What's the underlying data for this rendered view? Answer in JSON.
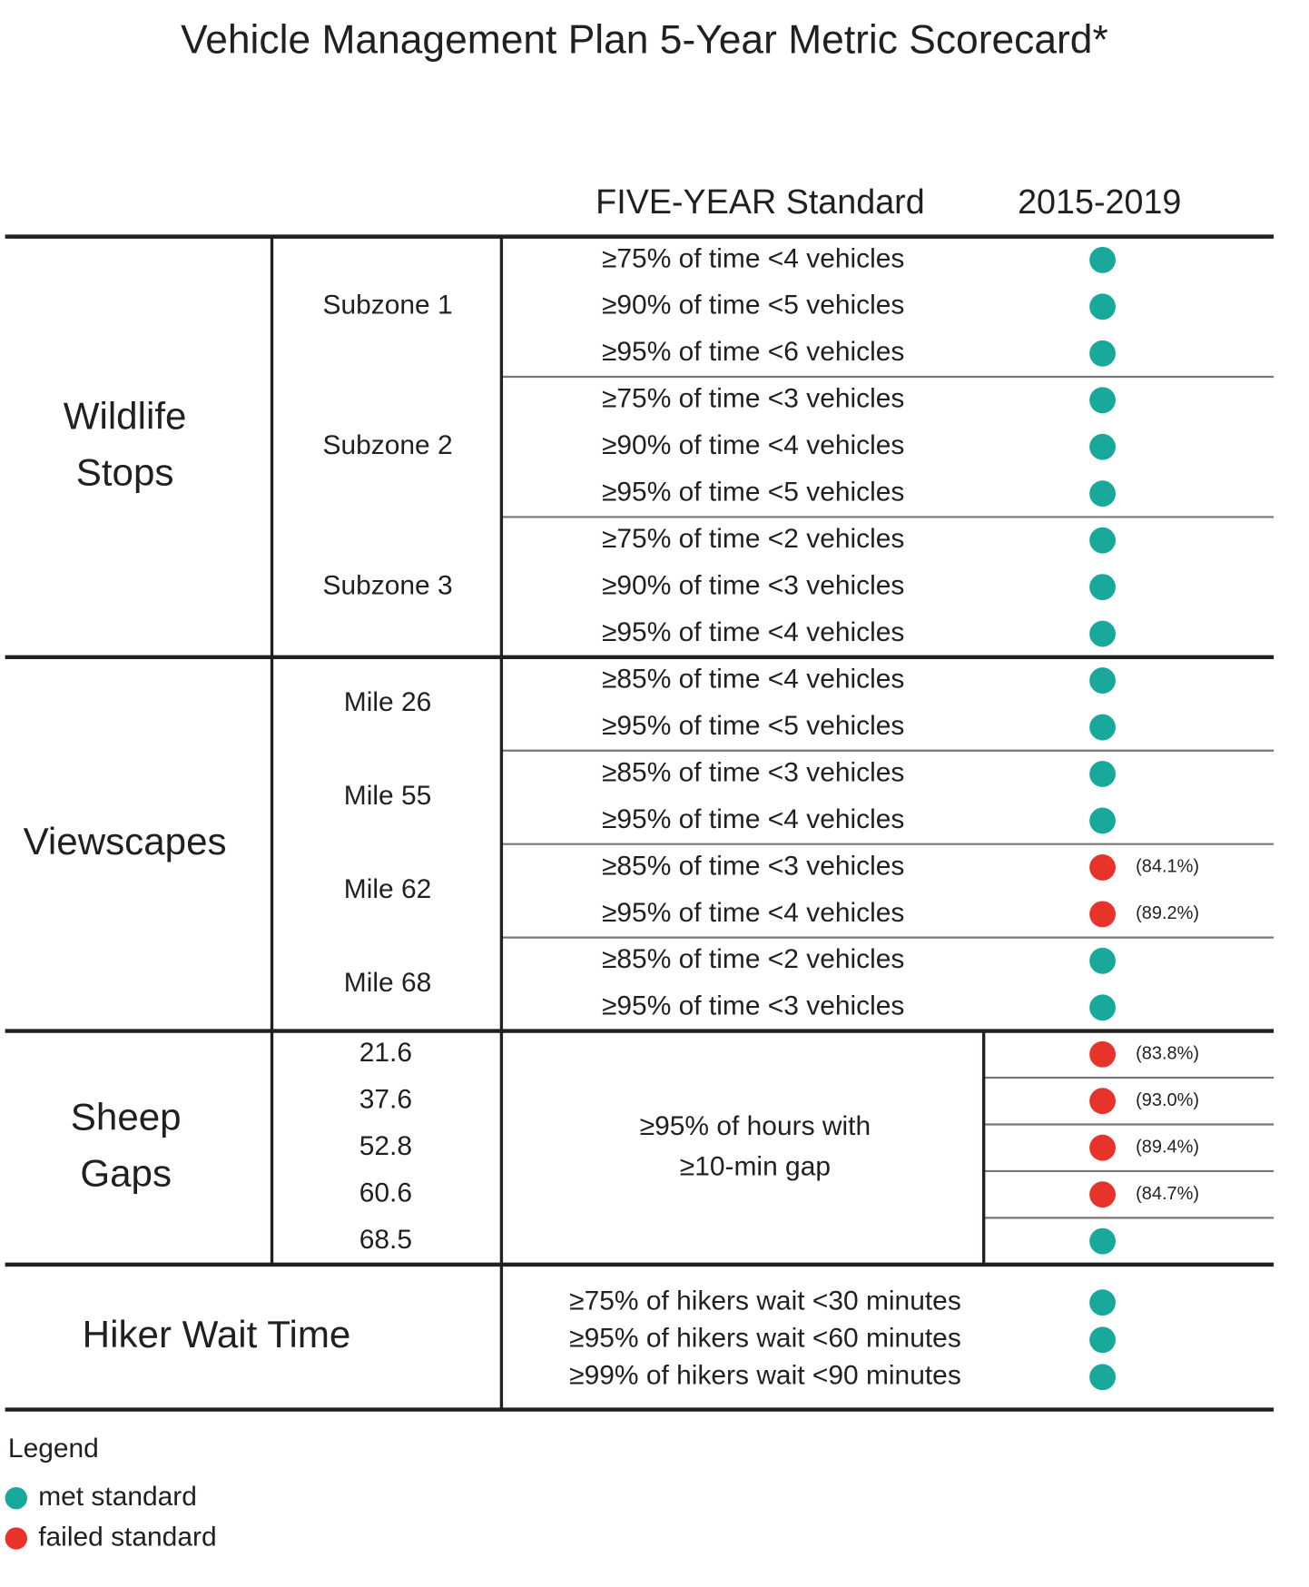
{
  "title": "Vehicle Management Plan 5-Year Metric Scorecard*",
  "header": {
    "standard": "FIVE-YEAR Standard",
    "period": "2015-2019"
  },
  "sections": [
    {
      "label": [
        "Wildlife",
        "Stops"
      ],
      "groups": [
        {
          "label": "Subzone 1",
          "rows": [
            {
              "standard": "≥75% of time <4 vehicles",
              "color": "#19a99b"
            },
            {
              "standard": "≥90% of time <5 vehicles",
              "color": "#19a99b"
            },
            {
              "standard": "≥95% of time <6 vehicles",
              "color": "#19a99b"
            }
          ]
        },
        {
          "label": "Subzone 2",
          "rows": [
            {
              "standard": "≥75% of time <3 vehicles",
              "color": "#19a99b"
            },
            {
              "standard": "≥90% of time <4 vehicles",
              "color": "#19a99b"
            },
            {
              "standard": "≥95% of time <5 vehicles",
              "color": "#19a99b"
            }
          ]
        },
        {
          "label": "Subzone 3",
          "rows": [
            {
              "standard": "≥75% of time <2 vehicles",
              "color": "#19a99b"
            },
            {
              "standard": "≥90% of time <3 vehicles",
              "color": "#19a99b"
            },
            {
              "standard": "≥95% of time <4 vehicles",
              "color": "#19a99b"
            }
          ]
        }
      ]
    },
    {
      "label": [
        "Viewscapes"
      ],
      "groups": [
        {
          "label": "Mile 26",
          "rows": [
            {
              "standard": "≥85% of time <4 vehicles",
              "color": "#19a99b"
            },
            {
              "standard": "≥95% of time <5 vehicles",
              "color": "#19a99b"
            }
          ]
        },
        {
          "label": "Mile 55",
          "rows": [
            {
              "standard": "≥85% of time <3 vehicles",
              "color": "#19a99b"
            },
            {
              "standard": "≥95% of time <4 vehicles",
              "color": "#19a99b"
            }
          ]
        },
        {
          "label": "Mile 62",
          "rows": [
            {
              "standard": "≥85% of time <3 vehicles",
              "color": "#e8332a",
              "note": "(84.1%)"
            },
            {
              "standard": "≥95% of time <4 vehicles",
              "color": "#e8332a",
              "note": "(89.2%)"
            }
          ]
        },
        {
          "label": "Mile 68",
          "rows": [
            {
              "standard": "≥85% of time <2 vehicles",
              "color": "#19a99b"
            },
            {
              "standard": "≥95% of time <3 vehicles",
              "color": "#19a99b"
            }
          ]
        }
      ]
    },
    {
      "label": [
        "Sheep",
        "Gaps"
      ],
      "locations": [
        "21.6",
        "37.6",
        "52.8",
        "60.6",
        "68.5"
      ],
      "standard": [
        "≥95% of hours with",
        "≥10-min gap"
      ],
      "results": [
        {
          "color": "#e8332a",
          "note": "(83.8%)"
        },
        {
          "color": "#e8332a",
          "note": "(93.0%)"
        },
        {
          "color": "#e8332a",
          "note": "(89.4%)"
        },
        {
          "color": "#e8332a",
          "note": "(84.7%)"
        },
        {
          "color": "#19a99b"
        }
      ]
    },
    {
      "label": [
        "Hiker Wait Time"
      ],
      "rows": [
        {
          "standard": "≥75% of hikers wait <30 minutes",
          "color": "#19a99b"
        },
        {
          "standard": "≥95% of hikers wait <60 minutes",
          "color": "#19a99b"
        },
        {
          "standard": "≥99% of hikers wait <90 minutes",
          "color": "#19a99b"
        }
      ]
    }
  ],
  "legend": {
    "title": "Legend",
    "items": [
      {
        "label": "met standard",
        "color": "#19a99b"
      },
      {
        "label": "failed standard",
        "color": "#e8332a"
      }
    ]
  }
}
